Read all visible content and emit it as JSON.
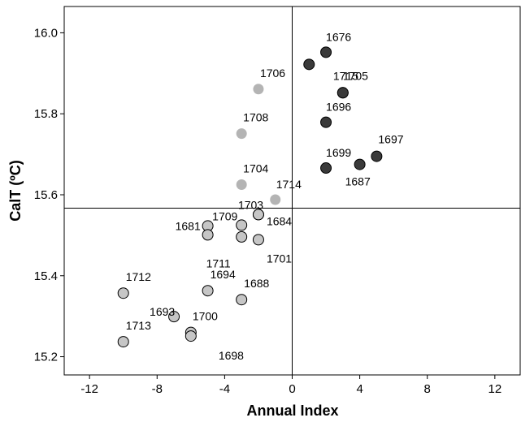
{
  "chart_data": {
    "type": "scatter",
    "xlabel": "Annual Index",
    "ylabel": "CalT (ºC)",
    "xlim": [
      -13.5,
      13.5
    ],
    "ylim": [
      15.155,
      16.065
    ],
    "xticks": [
      -12,
      -8,
      -4,
      0,
      4,
      8,
      12
    ],
    "yticks": [
      15.2,
      15.4,
      15.6,
      15.8,
      16.0
    ],
    "xtick_labels": [
      "-12",
      "-8",
      "-4",
      "0",
      "4",
      "8",
      "12"
    ],
    "ytick_labels": [
      "15.2",
      "15.4",
      "15.6",
      "15.8",
      "16.0"
    ],
    "reference_lines": {
      "x": 0,
      "y": 15.567
    },
    "grid": false,
    "colors": {
      "dark": "#3a3a3a",
      "light": "#b4b4b4",
      "medium": "#c6c6c6"
    },
    "points": [
      {
        "label": "1676",
        "x": 2,
        "y": 15.952,
        "group": "dark"
      },
      {
        "label": "",
        "x": 1,
        "y": 15.922,
        "group": "dark"
      },
      {
        "label": "1715",
        "x": 3,
        "y": 15.852,
        "group": "dark"
      },
      {
        "label": "1705",
        "x": 3,
        "y": 15.852,
        "group": "dark"
      },
      {
        "label": "1696",
        "x": 2,
        "y": 15.779,
        "group": "dark"
      },
      {
        "label": "1697",
        "x": 5,
        "y": 15.695,
        "group": "dark"
      },
      {
        "label": "1699",
        "x": 2,
        "y": 15.666,
        "group": "dark"
      },
      {
        "label": "1687",
        "x": 4,
        "y": 15.675,
        "group": "dark"
      },
      {
        "label": "1706",
        "x": -2,
        "y": 15.861,
        "group": "light"
      },
      {
        "label": "1708",
        "x": -3,
        "y": 15.751,
        "group": "light"
      },
      {
        "label": "1704",
        "x": -3,
        "y": 15.625,
        "group": "light"
      },
      {
        "label": "1714",
        "x": -1,
        "y": 15.588,
        "group": "light"
      },
      {
        "label": "1703",
        "x": -2,
        "y": 15.551,
        "group": "medium"
      },
      {
        "label": "1684",
        "x": -2,
        "y": 15.551,
        "group": "medium"
      },
      {
        "label": "1709",
        "x": -3,
        "y": 15.525,
        "group": "medium"
      },
      {
        "label": "1681",
        "x": -5,
        "y": 15.523,
        "group": "medium"
      },
      {
        "label": "1711",
        "x": -5,
        "y": 15.501,
        "group": "medium"
      },
      {
        "label": "",
        "x": -3,
        "y": 15.496,
        "group": "medium"
      },
      {
        "label": "1701",
        "x": -2,
        "y": 15.489,
        "group": "medium"
      },
      {
        "label": "1712",
        "x": -10,
        "y": 15.357,
        "group": "medium"
      },
      {
        "label": "1694",
        "x": -5,
        "y": 15.363,
        "group": "medium"
      },
      {
        "label": "1688",
        "x": -3,
        "y": 15.341,
        "group": "medium"
      },
      {
        "label": "1693",
        "x": -7,
        "y": 15.299,
        "group": "medium"
      },
      {
        "label": "1700",
        "x": -6,
        "y": 15.26,
        "group": "medium"
      },
      {
        "label": "1698",
        "x": -6,
        "y": 15.251,
        "group": "medium"
      },
      {
        "label": "1713",
        "x": -10,
        "y": 15.237,
        "group": "medium"
      }
    ]
  }
}
